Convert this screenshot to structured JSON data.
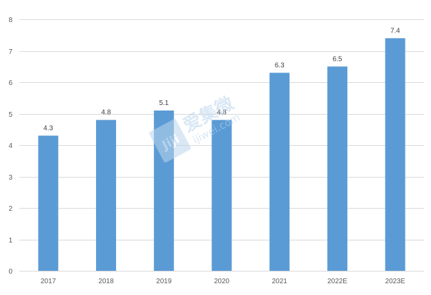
{
  "chart_data": {
    "type": "bar",
    "categories": [
      "2017",
      "2018",
      "2019",
      "2020",
      "2021",
      "2022E",
      "2023E"
    ],
    "values": [
      4.3,
      4.8,
      5.1,
      4.8,
      6.3,
      6.5,
      7.4
    ],
    "data_labels": [
      "4.3",
      "4.8",
      "5.1",
      "4.8",
      "6.3",
      "6.5",
      "7.4"
    ],
    "ylim": [
      0,
      8
    ],
    "yticks": [
      0,
      1,
      2,
      3,
      4,
      5,
      6,
      7,
      8
    ],
    "grid": true,
    "legend": "none",
    "bar_color": "#5B9BD5",
    "grid_color": "#D9D9D9"
  },
  "watermark": {
    "logo_text": "Jiji",
    "brand_text": "爱集微",
    "domain_text": "ijiwei.com",
    "color": "#BDD7EE"
  }
}
